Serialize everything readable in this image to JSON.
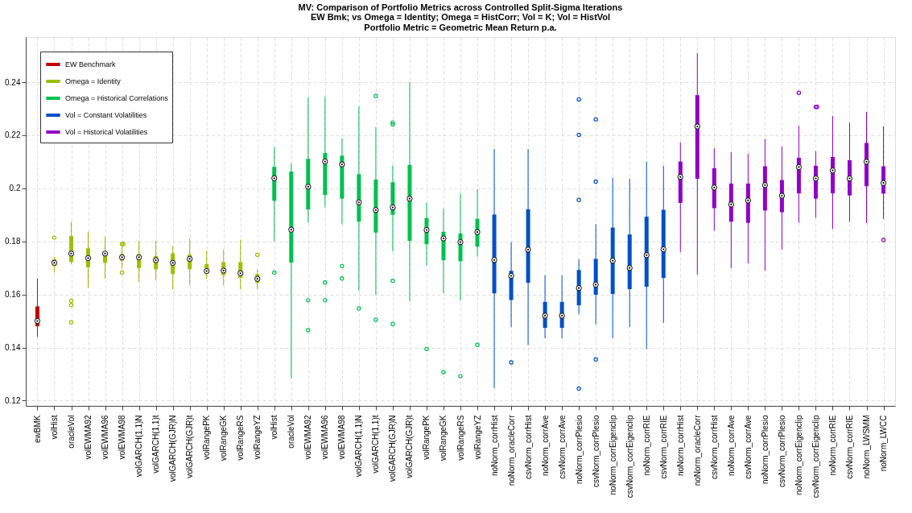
{
  "chart_data": {
    "type": "box",
    "title": "MV: Comparison of Portfolio Metrics across Controlled Split-Sigma Iterations",
    "subtitle": "EW Bmk; vs Omega = Identity; Omega = HistCorr; Vol = K; Vol = HistVol\nPortfolio Metric =  Geometric Mean Return p.a.",
    "categories": [
      "ewBMK",
      "volHist",
      "oracleVol",
      "volEWMA92",
      "volEWMA96",
      "volEWMA98",
      "volGARCH(1,1)N",
      "volGARCH(1,1)t",
      "volGARCH(GJR)N",
      "volGARCH(GJR)t",
      "volRangePK",
      "volRangeGK",
      "volRangeRS",
      "volRangeYZ",
      "volHist",
      "oracleVol",
      "volEWMA92",
      "volEWMA96",
      "volEWMA98",
      "volGARCH(1,1)N",
      "volGARCH(1,1)t",
      "volGARCH(GJR)N",
      "volGARCH(GJR)t",
      "volRangePK",
      "volRangeGK",
      "volRangeRS",
      "volRangeYZ",
      "noNorm_corrHist",
      "noNorm_oracleCorr",
      "csvNorm_corrHist",
      "noNorm_corrAve",
      "csvNorm_corrAve",
      "noNorm_corrPlesio",
      "csvNorm_corrPlesio",
      "noNorm_corrEigenclip",
      "csvNorm_corrEigenclip",
      "noNorm_corrRIE",
      "csvNorm_corrRIE",
      "noNorm_corrHist",
      "noNorm_oracleCorr",
      "csvNorm_corrHist",
      "noNorm_corrAve",
      "csvNorm_corrAve",
      "noNorm_corrPlesio",
      "csvNorm_corrPlesio",
      "noNorm_corrEigenclip",
      "csvNorm_corrEigenclip",
      "noNorm_corrRIE",
      "csvNorm_corrRIE",
      "noNorm_LWSMM",
      "noNorm_LWCC"
    ],
    "ylim": [
      0.118,
      0.257
    ],
    "yticks": [
      0.12,
      0.14,
      0.16,
      0.18,
      0.2,
      0.22,
      0.24
    ],
    "grid": true,
    "legend": "top left",
    "series": [
      {
        "name": "EW Benchmark",
        "color": "#c00000",
        "boxes": [
          {
            "low": 0.144,
            "q1": 0.148,
            "median": 0.15,
            "q3": 0.1555,
            "high": 0.166
          },
          null,
          null,
          null,
          null,
          null,
          null,
          null,
          null,
          null,
          null,
          null,
          null,
          null,
          null,
          null,
          null,
          null,
          null,
          null,
          null,
          null,
          null,
          null,
          null,
          null,
          null,
          null,
          null,
          null,
          null,
          null,
          null,
          null,
          null,
          null,
          null,
          null,
          null,
          null,
          null,
          null,
          null,
          null,
          null,
          null,
          null,
          null,
          null,
          null,
          null
        ]
      },
      {
        "name": "Omega = Identity",
        "color": "#9ac000",
        "boxes": [
          null,
          {
            "low": 0.1682,
            "q1": 0.1707,
            "median": 0.1719,
            "q3": 0.1732,
            "high": 0.1742,
            "outliers": [
              0.1814
            ]
          },
          {
            "low": 0.1714,
            "q1": 0.1722,
            "median": 0.1754,
            "q3": 0.182,
            "high": 0.1874,
            "outliers": [
              0.1576,
              0.156,
              0.1495
            ]
          },
          {
            "low": 0.1625,
            "q1": 0.1702,
            "median": 0.1737,
            "q3": 0.1774,
            "high": 0.1837
          },
          {
            "low": 0.1659,
            "q1": 0.1719,
            "median": 0.1754,
            "q3": 0.1762,
            "high": 0.1817
          },
          {
            "low": 0.1697,
            "q1": 0.1727,
            "median": 0.174,
            "q3": 0.1752,
            "high": 0.1792,
            "outliers": [
              0.179,
              0.179,
              0.1682
            ]
          },
          {
            "low": 0.1648,
            "q1": 0.1699,
            "median": 0.174,
            "q3": 0.1752,
            "high": 0.1802
          },
          {
            "low": 0.1653,
            "q1": 0.1695,
            "median": 0.1729,
            "q3": 0.1745,
            "high": 0.1802
          },
          {
            "low": 0.1619,
            "q1": 0.1677,
            "median": 0.1719,
            "q3": 0.1755,
            "high": 0.1782
          },
          {
            "low": 0.1634,
            "q1": 0.1695,
            "median": 0.1734,
            "q3": 0.175,
            "high": 0.1812
          },
          {
            "low": 0.1659,
            "q1": 0.168,
            "median": 0.1688,
            "q3": 0.1714,
            "high": 0.1765
          },
          {
            "low": 0.1634,
            "q1": 0.1673,
            "median": 0.169,
            "q3": 0.1722,
            "high": 0.1769
          },
          {
            "low": 0.1619,
            "q1": 0.1663,
            "median": 0.168,
            "q3": 0.1722,
            "high": 0.1807
          },
          {
            "low": 0.1619,
            "q1": 0.1643,
            "median": 0.1659,
            "q3": 0.1677,
            "high": 0.1695,
            "outliers": [
              0.1749
            ]
          },
          null,
          null,
          null,
          null,
          null,
          null,
          null,
          null,
          null,
          null,
          null,
          null,
          null,
          null,
          null,
          null,
          null,
          null,
          null,
          null,
          null,
          null,
          null,
          null,
          null,
          null,
          null,
          null,
          null,
          null,
          null,
          null,
          null,
          null,
          null,
          null,
          null
        ]
      },
      {
        "name": "Omega = Historical Correlations",
        "color": "#00c050",
        "boxes": [
          null,
          null,
          null,
          null,
          null,
          null,
          null,
          null,
          null,
          null,
          null,
          null,
          null,
          null,
          {
            "low": 0.18,
            "q1": 0.1953,
            "median": 0.2038,
            "q3": 0.2081,
            "high": 0.2155,
            "outliers": [
              0.1682
            ]
          },
          {
            "low": 0.1284,
            "q1": 0.172,
            "median": 0.1844,
            "q3": 0.2063,
            "high": 0.2093
          },
          {
            "low": 0.187,
            "q1": 0.192,
            "median": 0.2006,
            "q3": 0.2111,
            "high": 0.2343,
            "outliers": [
              0.1578,
              0.1465
            ]
          },
          {
            "low": 0.1929,
            "q1": 0.1975,
            "median": 0.2101,
            "q3": 0.2133,
            "high": 0.2345,
            "outliers": [
              0.1645,
              0.1578
            ]
          },
          {
            "low": 0.1865,
            "q1": 0.1961,
            "median": 0.209,
            "q3": 0.2123,
            "high": 0.2188,
            "outliers": [
              0.1707,
              0.166
            ]
          },
          {
            "low": 0.1614,
            "q1": 0.1874,
            "median": 0.1947,
            "q3": 0.2053,
            "high": 0.2308,
            "outliers": [
              0.1547
            ]
          },
          {
            "low": 0.1599,
            "q1": 0.1833,
            "median": 0.1918,
            "q3": 0.2033,
            "high": 0.2231,
            "outliers": [
              0.2348,
              0.1505
            ]
          },
          {
            "low": 0.1762,
            "q1": 0.19,
            "median": 0.1928,
            "q3": 0.2023,
            "high": 0.2086,
            "outliers": [
              0.2248,
              0.2241,
              0.1651,
              0.1489
            ]
          },
          {
            "low": 0.1574,
            "q1": 0.1802,
            "median": 0.1961,
            "q3": 0.2088,
            "high": 0.24
          },
          {
            "low": 0.1709,
            "q1": 0.1789,
            "median": 0.1843,
            "q3": 0.1888,
            "high": 0.1945,
            "outliers": [
              0.1395
            ]
          },
          {
            "low": 0.1605,
            "q1": 0.1729,
            "median": 0.1811,
            "q3": 0.1836,
            "high": 0.1923,
            "outliers": [
              0.1307
            ]
          },
          {
            "low": 0.1577,
            "q1": 0.1725,
            "median": 0.1797,
            "q3": 0.183,
            "high": 0.1981,
            "outliers": [
              0.1292
            ]
          },
          {
            "low": 0.1742,
            "q1": 0.178,
            "median": 0.1835,
            "q3": 0.1885,
            "high": 0.1996,
            "outliers": [
              0.141
            ]
          },
          null,
          null,
          null,
          null,
          null,
          null,
          null,
          null,
          null,
          null,
          null,
          null,
          null,
          null,
          null,
          null,
          null,
          null,
          null,
          null,
          null,
          null,
          null,
          null
        ]
      },
      {
        "name": "Vol = Constant Volatilities",
        "color": "#0050c8",
        "boxes": [
          null,
          null,
          null,
          null,
          null,
          null,
          null,
          null,
          null,
          null,
          null,
          null,
          null,
          null,
          null,
          null,
          null,
          null,
          null,
          null,
          null,
          null,
          null,
          null,
          null,
          null,
          null,
          {
            "low": 0.1247,
            "q1": 0.1604,
            "median": 0.173,
            "q3": 0.1901,
            "high": 0.2148
          },
          {
            "low": 0.1477,
            "q1": 0.1579,
            "median": 0.167,
            "q3": 0.1689,
            "high": 0.1797,
            "outliers": [
              0.1344
            ]
          },
          {
            "low": 0.1409,
            "q1": 0.1644,
            "median": 0.1769,
            "q3": 0.1921,
            "high": 0.2148
          },
          {
            "low": 0.1435,
            "q1": 0.1474,
            "median": 0.152,
            "q3": 0.1572,
            "high": 0.1672
          },
          {
            "low": 0.1435,
            "q1": 0.1474,
            "median": 0.152,
            "q3": 0.1572,
            "high": 0.1672
          },
          {
            "low": 0.1525,
            "q1": 0.1559,
            "median": 0.1624,
            "q3": 0.1692,
            "high": 0.1732,
            "outliers": [
              0.2335,
              0.2201,
              0.1956,
              0.1245
            ]
          },
          {
            "low": 0.1487,
            "q1": 0.1599,
            "median": 0.1637,
            "q3": 0.1734,
            "high": 0.1865,
            "outliers": [
              0.226,
              0.2025,
              0.1355
            ]
          },
          {
            "low": 0.1435,
            "q1": 0.1602,
            "median": 0.1727,
            "q3": 0.1852,
            "high": 0.204
          },
          {
            "low": 0.1477,
            "q1": 0.162,
            "median": 0.17,
            "q3": 0.1826,
            "high": 0.2036
          },
          {
            "low": 0.1395,
            "q1": 0.1629,
            "median": 0.1748,
            "q3": 0.1893,
            "high": 0.21
          },
          {
            "low": 0.1492,
            "q1": 0.1662,
            "median": 0.177,
            "q3": 0.1919,
            "high": 0.2085
          },
          null,
          null,
          null,
          null,
          null,
          null,
          null,
          null,
          null,
          null,
          null,
          null,
          null
        ]
      },
      {
        "name": "Vol = Historical Volatilities",
        "color": "#9000c8",
        "boxes": [
          null,
          null,
          null,
          null,
          null,
          null,
          null,
          null,
          null,
          null,
          null,
          null,
          null,
          null,
          null,
          null,
          null,
          null,
          null,
          null,
          null,
          null,
          null,
          null,
          null,
          null,
          null,
          null,
          null,
          null,
          null,
          null,
          null,
          null,
          null,
          null,
          null,
          null,
          {
            "low": 0.176,
            "q1": 0.1945,
            "median": 0.2043,
            "q3": 0.2101,
            "high": 0.2173
          },
          {
            "low": 0.1674,
            "q1": 0.2036,
            "median": 0.2233,
            "q3": 0.2351,
            "high": 0.251
          },
          {
            "low": 0.184,
            "q1": 0.1925,
            "median": 0.2003,
            "q3": 0.2076,
            "high": 0.2151
          },
          {
            "low": 0.1699,
            "q1": 0.1874,
            "median": 0.1939,
            "q3": 0.2018,
            "high": 0.2136
          },
          {
            "low": 0.1717,
            "q1": 0.187,
            "median": 0.1954,
            "q3": 0.2018,
            "high": 0.213
          },
          {
            "low": 0.169,
            "q1": 0.1916,
            "median": 0.2012,
            "q3": 0.2083,
            "high": 0.2186
          },
          {
            "low": 0.1769,
            "q1": 0.191,
            "median": 0.1972,
            "q3": 0.2031,
            "high": 0.2158
          },
          {
            "low": 0.187,
            "q1": 0.1981,
            "median": 0.208,
            "q3": 0.2115,
            "high": 0.2236,
            "outliers": [
              0.236
            ]
          },
          {
            "low": 0.1889,
            "q1": 0.1961,
            "median": 0.2037,
            "q3": 0.2085,
            "high": 0.214,
            "outliers": [
              0.2307,
              0.2307
            ]
          },
          {
            "low": 0.1847,
            "q1": 0.1981,
            "median": 0.2067,
            "q3": 0.2118,
            "high": 0.2273
          },
          {
            "low": 0.1874,
            "q1": 0.1973,
            "median": 0.2037,
            "q3": 0.2106,
            "high": 0.2248
          },
          {
            "low": 0.1869,
            "q1": 0.2008,
            "median": 0.21,
            "q3": 0.2171,
            "high": 0.2288
          },
          {
            "low": 0.1884,
            "q1": 0.198,
            "median": 0.202,
            "q3": 0.2083,
            "high": 0.2234,
            "outliers": [
              0.1805
            ]
          }
        ]
      }
    ]
  }
}
